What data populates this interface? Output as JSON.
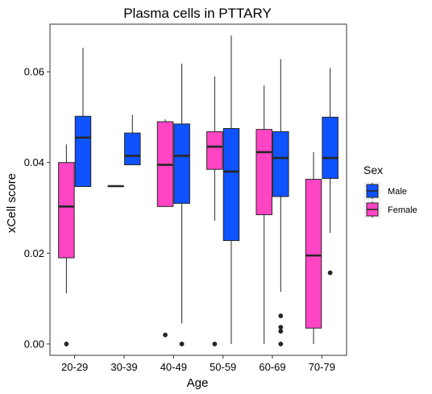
{
  "chart_data": {
    "type": "boxplot",
    "title": "Plasma cells in PTTARY",
    "xlabel": "Age",
    "ylabel": "xCell score",
    "ylim": [
      -0.0025,
      0.0705
    ],
    "yticks": [
      0.0,
      0.02,
      0.04,
      0.06
    ],
    "ytick_labels": [
      "0.00",
      "0.02",
      "0.04",
      "0.06"
    ],
    "grid": false,
    "categories": [
      "20-29",
      "30-39",
      "40-49",
      "50-59",
      "60-69",
      "70-79"
    ],
    "legend": {
      "title": "Sex",
      "position": "right",
      "entries": [
        "Male",
        "Female"
      ]
    },
    "colors": {
      "Male": "#0f52ff",
      "Female": "#ff45c4",
      "outline": "#262626"
    },
    "series": [
      {
        "name": "Male",
        "boxes": [
          {
            "category": "20-29",
            "whisker_low": 0.0347,
            "q1": 0.0347,
            "median": 0.0455,
            "q3": 0.0502,
            "whisker_high": 0.0653,
            "outliers": []
          },
          {
            "category": "30-39",
            "whisker_low": 0.0395,
            "q1": 0.0395,
            "median": 0.0415,
            "q3": 0.0465,
            "whisker_high": 0.0505,
            "outliers": []
          },
          {
            "category": "40-49",
            "whisker_low": 0.0045,
            "q1": 0.031,
            "median": 0.0415,
            "q3": 0.0485,
            "whisker_high": 0.0618,
            "outliers": [
              0.0
            ]
          },
          {
            "category": "50-59",
            "whisker_low": 0.0,
            "q1": 0.0228,
            "median": 0.038,
            "q3": 0.0475,
            "whisker_high": 0.068,
            "outliers": []
          },
          {
            "category": "60-69",
            "whisker_low": 0.0115,
            "q1": 0.0325,
            "median": 0.041,
            "q3": 0.0468,
            "whisker_high": 0.0628,
            "outliers": [
              0.0062,
              0.0037,
              0.0028,
              0.0
            ]
          },
          {
            "category": "70-79",
            "whisker_low": 0.0245,
            "q1": 0.0365,
            "median": 0.041,
            "q3": 0.05,
            "whisker_high": 0.0608,
            "outliers": [
              0.0157
            ]
          }
        ]
      },
      {
        "name": "Female",
        "boxes": [
          {
            "category": "20-29",
            "whisker_low": 0.0112,
            "q1": 0.019,
            "median": 0.0303,
            "q3": 0.04,
            "whisker_high": 0.044,
            "outliers": [
              0.0
            ]
          },
          {
            "category": "30-39",
            "whisker_low": 0.0348,
            "q1": 0.0348,
            "median": 0.0348,
            "q3": 0.0348,
            "whisker_high": 0.0348,
            "outliers": []
          },
          {
            "category": "40-49",
            "whisker_low": 0.0303,
            "q1": 0.0303,
            "median": 0.0395,
            "q3": 0.049,
            "whisker_high": 0.0495,
            "outliers": [
              0.002
            ]
          },
          {
            "category": "50-59",
            "whisker_low": 0.0272,
            "q1": 0.0385,
            "median": 0.0435,
            "q3": 0.0468,
            "whisker_high": 0.059,
            "outliers": [
              0.0
            ]
          },
          {
            "category": "60-69",
            "whisker_low": 0.0,
            "q1": 0.0285,
            "median": 0.0423,
            "q3": 0.0473,
            "whisker_high": 0.057,
            "outliers": []
          },
          {
            "category": "70-79",
            "whisker_low": 0.0,
            "q1": 0.0035,
            "median": 0.0195,
            "q3": 0.0363,
            "whisker_high": 0.0423,
            "outliers": []
          }
        ]
      }
    ]
  }
}
